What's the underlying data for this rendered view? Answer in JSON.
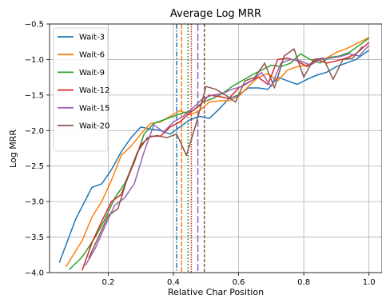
{
  "chart_data": {
    "type": "line",
    "title": "Average Log MRR",
    "xlabel": "Relative Char Position",
    "ylabel": "Log MRR",
    "xlim": [
      0.02,
      1.04
    ],
    "ylim": [
      -4.0,
      -0.5
    ],
    "xticks": [
      0.2,
      0.4,
      0.6,
      0.8,
      1.0
    ],
    "xtick_labels": [
      "0.2",
      "0.4",
      "0.6",
      "0.8",
      "1.0"
    ],
    "yticks": [
      -4.0,
      -3.5,
      -3.0,
      -2.5,
      -2.0,
      -1.5,
      -1.0,
      -0.5
    ],
    "ytick_labels": [
      "−4.0",
      "−3.5",
      "−3.0",
      "−2.5",
      "−2.0",
      "−1.5",
      "−1.0",
      "−0.5"
    ],
    "grid": true,
    "legend_position": "top-left",
    "series": [
      {
        "name": "Wait-3",
        "color": "#1f77b4",
        "vline": 0.41,
        "x": [
          0.05,
          0.1,
          0.15,
          0.18,
          0.21,
          0.24,
          0.27,
          0.3,
          0.33,
          0.36,
          0.39,
          0.42,
          0.45,
          0.48,
          0.51,
          0.54,
          0.57,
          0.6,
          0.63,
          0.66,
          0.69,
          0.72,
          0.75,
          0.78,
          0.81,
          0.84,
          0.87,
          0.9,
          0.93,
          0.96,
          1.0
        ],
        "y": [
          -3.86,
          -3.25,
          -2.8,
          -2.75,
          -2.55,
          -2.3,
          -2.1,
          -1.95,
          -1.98,
          -2.0,
          -2.05,
          -1.95,
          -1.85,
          -1.8,
          -1.83,
          -1.7,
          -1.55,
          -1.5,
          -1.4,
          -1.4,
          -1.42,
          -1.25,
          -1.3,
          -1.35,
          -1.28,
          -1.22,
          -1.18,
          -1.1,
          -1.05,
          -1.0,
          -0.87
        ]
      },
      {
        "name": "Wait-6",
        "color": "#ff7f0e",
        "vline": 0.425,
        "x": [
          0.07,
          0.12,
          0.15,
          0.18,
          0.21,
          0.24,
          0.27,
          0.3,
          0.33,
          0.36,
          0.39,
          0.42,
          0.45,
          0.48,
          0.51,
          0.54,
          0.57,
          0.6,
          0.63,
          0.66,
          0.69,
          0.72,
          0.75,
          0.78,
          0.81,
          0.84,
          0.87,
          0.9,
          0.93,
          0.96,
          1.0
        ],
        "y": [
          -3.92,
          -3.55,
          -3.22,
          -3.0,
          -2.7,
          -2.35,
          -2.22,
          -2.05,
          -1.9,
          -1.88,
          -1.8,
          -1.72,
          -1.78,
          -1.72,
          -1.6,
          -1.58,
          -1.58,
          -1.52,
          -1.38,
          -1.25,
          -1.2,
          -1.3,
          -1.15,
          -1.1,
          -1.08,
          -1.02,
          -0.98,
          -0.9,
          -0.85,
          -0.78,
          -0.69
        ]
      },
      {
        "name": "Wait-9",
        "color": "#2ca02c",
        "vline": 0.445,
        "x": [
          0.08,
          0.12,
          0.16,
          0.19,
          0.22,
          0.25,
          0.28,
          0.31,
          0.34,
          0.37,
          0.4,
          0.43,
          0.46,
          0.49,
          0.52,
          0.55,
          0.58,
          0.61,
          0.64,
          0.67,
          0.7,
          0.73,
          0.76,
          0.79,
          0.82,
          0.85,
          0.88,
          0.91,
          0.94,
          0.97,
          1.0
        ],
        "y": [
          -3.96,
          -3.78,
          -3.5,
          -3.25,
          -2.95,
          -2.75,
          -2.45,
          -2.05,
          -1.9,
          -1.85,
          -1.8,
          -1.75,
          -1.72,
          -1.6,
          -1.55,
          -1.48,
          -1.38,
          -1.3,
          -1.22,
          -1.15,
          -1.08,
          -1.1,
          -1.05,
          -0.92,
          -1.0,
          -1.05,
          -0.97,
          -0.95,
          -0.9,
          -0.8,
          -0.7
        ]
      },
      {
        "name": "Wait-12",
        "color": "#d62728",
        "vline": 0.455,
        "x": [
          0.12,
          0.15,
          0.18,
          0.21,
          0.24,
          0.27,
          0.3,
          0.33,
          0.36,
          0.39,
          0.42,
          0.45,
          0.48,
          0.51,
          0.54,
          0.57,
          0.6,
          0.63,
          0.66,
          0.69,
          0.72,
          0.75,
          0.78,
          0.81,
          0.84,
          0.87,
          0.9,
          0.93,
          0.96,
          1.0
        ],
        "y": [
          -3.97,
          -3.58,
          -3.28,
          -3.0,
          -2.9,
          -2.55,
          -2.2,
          -2.08,
          -2.08,
          -1.95,
          -1.88,
          -1.75,
          -1.65,
          -1.5,
          -1.52,
          -1.55,
          -1.4,
          -1.32,
          -1.25,
          -1.35,
          -1.0,
          -0.98,
          -1.02,
          -1.1,
          -1.0,
          -1.05,
          -1.02,
          -0.98,
          -0.92,
          -0.76
        ]
      },
      {
        "name": "Wait-15",
        "color": "#9467bd",
        "vline": 0.475,
        "x": [
          0.13,
          0.16,
          0.19,
          0.22,
          0.25,
          0.28,
          0.31,
          0.34,
          0.37,
          0.4,
          0.43,
          0.46,
          0.49,
          0.52,
          0.55,
          0.58,
          0.61,
          0.64,
          0.67,
          0.7,
          0.73,
          0.76,
          0.79,
          0.82,
          0.85,
          0.88,
          0.91,
          0.94,
          0.97,
          1.0
        ],
        "y": [
          -3.9,
          -3.66,
          -3.35,
          -3.05,
          -2.95,
          -2.75,
          -2.3,
          -1.92,
          -2.02,
          -1.88,
          -1.8,
          -1.68,
          -1.55,
          -1.5,
          -1.48,
          -1.42,
          -1.38,
          -1.3,
          -1.18,
          -1.38,
          -1.05,
          -1.0,
          -1.02,
          -1.08,
          -1.0,
          -0.98,
          -0.96,
          -0.92,
          -0.95,
          -0.8
        ]
      },
      {
        "name": "Wait-20",
        "color": "#8c564b",
        "vline": 0.495,
        "x": [
          0.14,
          0.17,
          0.2,
          0.23,
          0.26,
          0.29,
          0.32,
          0.35,
          0.38,
          0.41,
          0.44,
          0.47,
          0.5,
          0.53,
          0.56,
          0.59,
          0.62,
          0.65,
          0.68,
          0.71,
          0.74,
          0.77,
          0.8,
          0.83,
          0.86,
          0.89,
          0.92,
          0.95,
          0.98
        ],
        "y": [
          -3.8,
          -3.5,
          -3.2,
          -3.1,
          -2.65,
          -2.3,
          -2.1,
          -2.07,
          -2.1,
          -2.05,
          -2.35,
          -1.9,
          -1.38,
          -1.42,
          -1.5,
          -1.6,
          -1.3,
          -1.25,
          -1.05,
          -1.4,
          -0.95,
          -0.85,
          -1.25,
          -1.0,
          -0.98,
          -1.28,
          -1.0,
          -0.98,
          -0.82
        ]
      }
    ]
  }
}
